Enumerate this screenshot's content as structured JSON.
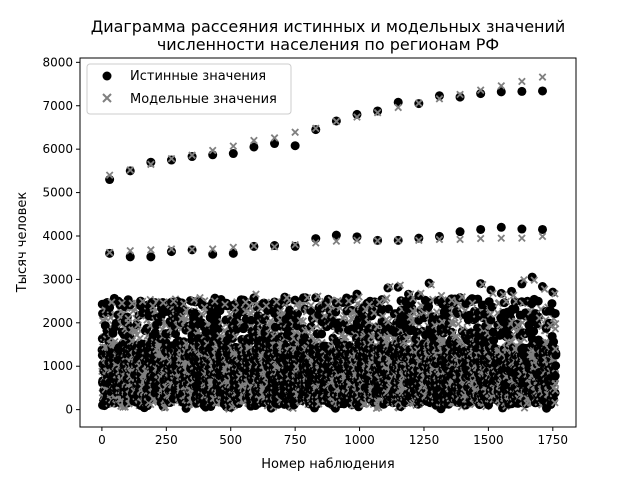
{
  "chart_data": {
    "type": "scatter",
    "title": "Диаграмма рассеяния истинных и модельных значений\nчисленности населения по регионам РФ",
    "xlabel": "Номер наблюдения",
    "ylabel": "Тысяч человек",
    "xlim": [
      -85,
      1840
    ],
    "ylim": [
      -400,
      8100
    ],
    "xticks": [
      0,
      250,
      500,
      750,
      1000,
      1250,
      1500,
      1750
    ],
    "yticks": [
      0,
      1000,
      2000,
      3000,
      4000,
      5000,
      6000,
      7000,
      8000
    ],
    "grid": false,
    "legend_position": "upper-left",
    "colors": {
      "true": "#000000",
      "model": "#808080"
    },
    "markers": {
      "true": "circle",
      "model": "x"
    },
    "series": [
      {
        "name": "Истинные значения",
        "x": [
          30,
          110,
          190,
          270,
          350,
          430,
          510,
          590,
          670,
          750,
          830,
          910,
          990,
          1070,
          1150,
          1230,
          1310,
          1390,
          1470,
          1550,
          1630,
          1710,
          30,
          110,
          190,
          270,
          350,
          430,
          510,
          590,
          670,
          750,
          830,
          910,
          990,
          1070,
          1150,
          1230,
          1310,
          1390,
          1470,
          1550,
          1630,
          1710
        ],
        "y": [
          5300,
          5500,
          5700,
          5750,
          5830,
          5870,
          5900,
          6050,
          6130,
          6080,
          6450,
          6650,
          6800,
          6880,
          7080,
          7050,
          7230,
          7200,
          7280,
          7320,
          7330,
          7340,
          3600,
          3520,
          3520,
          3640,
          3680,
          3580,
          3600,
          3760,
          3780,
          3760,
          3940,
          4020,
          3980,
          3900,
          3900,
          3950,
          3990,
          4100,
          4150,
          4200,
          4160,
          4150
        ]
      },
      {
        "name": "Модельные значения",
        "x": [
          30,
          110,
          190,
          270,
          350,
          430,
          510,
          590,
          670,
          750,
          830,
          910,
          990,
          1070,
          1150,
          1230,
          1310,
          1390,
          1470,
          1550,
          1630,
          1710,
          30,
          110,
          190,
          270,
          350,
          430,
          510,
          590,
          670,
          750,
          830,
          910,
          990,
          1070,
          1150,
          1230,
          1310,
          1390,
          1470,
          1550,
          1630,
          1710
        ],
        "y": [
          5400,
          5520,
          5650,
          5780,
          5860,
          5970,
          6070,
          6200,
          6260,
          6390,
          6480,
          6640,
          6740,
          6840,
          6960,
          7060,
          7160,
          7260,
          7360,
          7460,
          7560,
          7660,
          3620,
          3660,
          3680,
          3700,
          3690,
          3700,
          3740,
          3770,
          3750,
          3800,
          3840,
          3880,
          3900,
          3890,
          3900,
          3900,
          3920,
          3920,
          3940,
          3950,
          3950,
          3990
        ]
      }
    ],
    "dense_cluster": {
      "x_range": [
        0,
        1760
      ],
      "period": 82,
      "y_max": 3120,
      "note_for_render": "many overlapping observations below ~3100"
    }
  }
}
